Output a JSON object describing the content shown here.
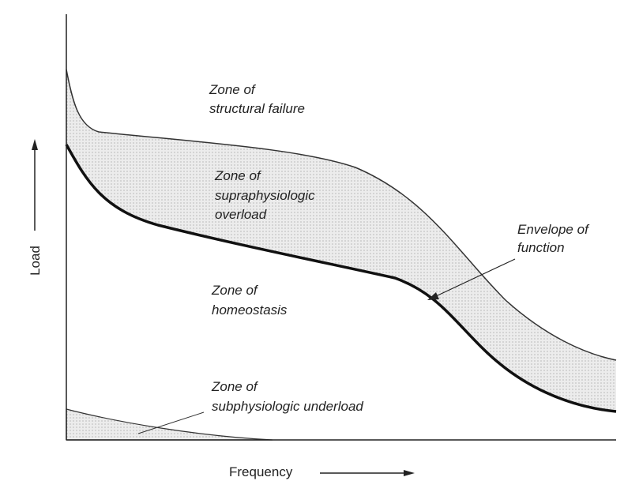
{
  "axes": {
    "y_label": "Load",
    "x_label": "Frequency"
  },
  "zones": [
    {
      "lines": [
        "Zone of",
        "structural failure"
      ]
    },
    {
      "lines": [
        "Zone of",
        "supraphysiologic",
        "overload"
      ]
    },
    {
      "lines": [
        "Zone of",
        "homeostasis"
      ]
    },
    {
      "lines": [
        "Zone of",
        "subphysiologic underload"
      ]
    }
  ],
  "annotation": {
    "lines": [
      "Envelope of",
      "function"
    ]
  }
}
